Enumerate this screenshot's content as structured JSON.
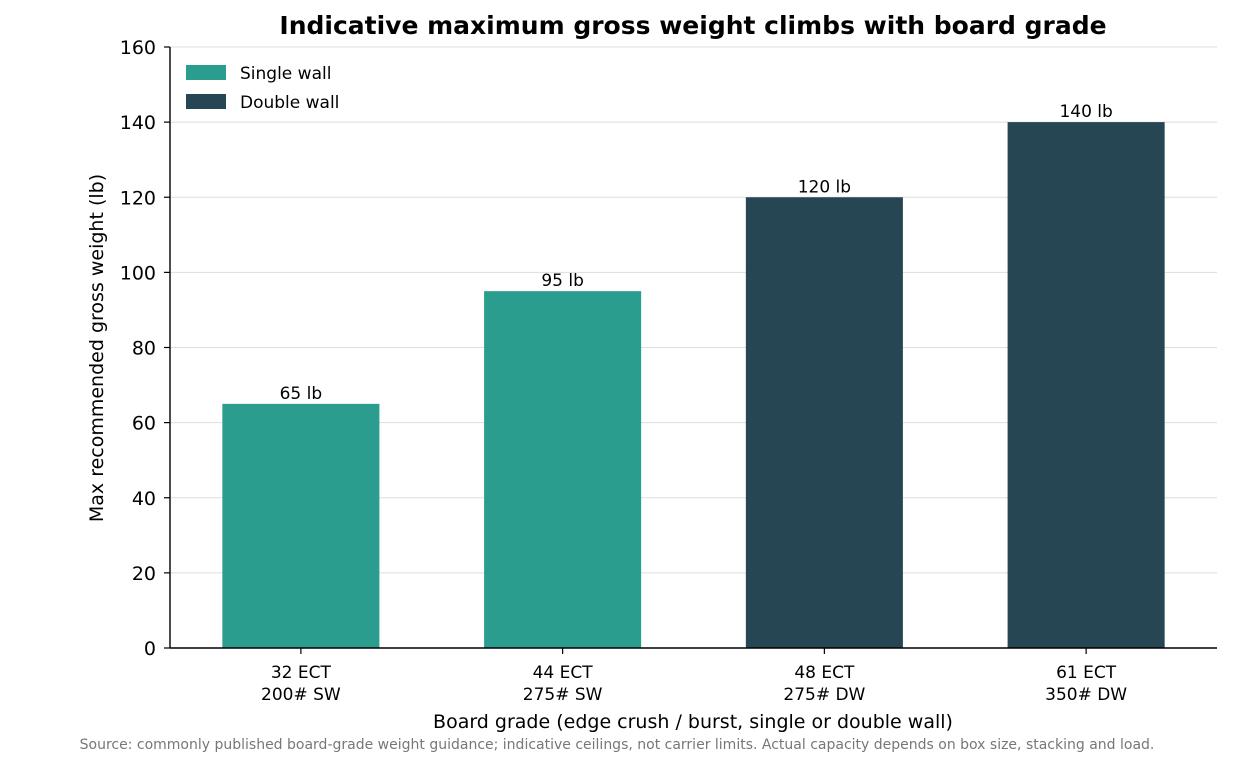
{
  "chart_data": {
    "type": "bar",
    "title": "Indicative maximum gross weight climbs with board grade",
    "xlabel": "Board grade (edge crush / burst, single or double wall)",
    "ylabel": "Max recommended gross weight (lb)",
    "categories": [
      [
        "32 ECT",
        "200# SW"
      ],
      [
        "44 ECT",
        "275# SW"
      ],
      [
        "48 ECT",
        "275# DW"
      ],
      [
        "61 ECT",
        "350# DW"
      ]
    ],
    "values": [
      65,
      95,
      120,
      140
    ],
    "value_labels": [
      "65 lb",
      "95 lb",
      "120 lb",
      "140 lb"
    ],
    "wall_type": [
      "single",
      "single",
      "double",
      "double"
    ],
    "ylim": [
      0,
      160
    ],
    "yticks": [
      0,
      20,
      40,
      60,
      80,
      100,
      120,
      140,
      160
    ],
    "grid": true,
    "legend": {
      "placement": "top-left",
      "entries": [
        {
          "key": "single",
          "label": "Single wall",
          "color": "#2a9d8f"
        },
        {
          "key": "double",
          "label": "Double wall",
          "color": "#264653"
        }
      ]
    },
    "source_note": "Source: commonly published board-grade weight guidance; indicative ceilings, not carrier limits. Actual capacity depends on box size, stacking and load."
  }
}
